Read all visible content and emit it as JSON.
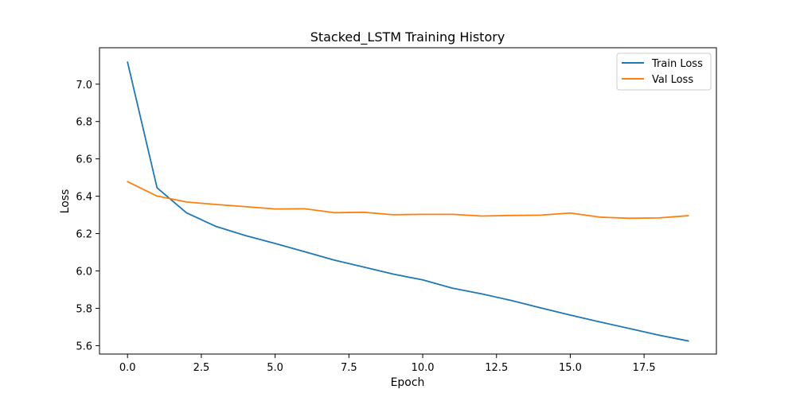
{
  "chart_data": {
    "type": "line",
    "title": "Stacked_LSTM Training History",
    "xlabel": "Epoch",
    "ylabel": "Loss",
    "xlim": [
      -0.95,
      19.95
    ],
    "ylim": [
      5.555,
      7.195
    ],
    "x_ticks": [
      0.0,
      2.5,
      5.0,
      7.5,
      10.0,
      12.5,
      15.0,
      17.5
    ],
    "x_tick_labels": [
      "0.0",
      "2.5",
      "5.0",
      "7.5",
      "10.0",
      "12.5",
      "15.0",
      "17.5"
    ],
    "y_ticks": [
      5.6,
      5.8,
      6.0,
      6.2,
      6.4,
      6.6,
      6.8,
      7.0
    ],
    "y_tick_labels": [
      "5.6",
      "5.8",
      "6.0",
      "6.2",
      "6.4",
      "6.6",
      "6.8",
      "7.0"
    ],
    "grid": false,
    "legend_position": "top-right",
    "x": [
      0,
      1,
      2,
      3,
      4,
      5,
      6,
      7,
      8,
      9,
      10,
      11,
      12,
      13,
      14,
      15,
      16,
      17,
      18,
      19
    ],
    "series": [
      {
        "name": "Train Loss",
        "color": "#1f77b4",
        "values": [
          7.118,
          6.445,
          6.311,
          6.238,
          6.189,
          6.147,
          6.103,
          6.058,
          6.021,
          5.983,
          5.952,
          5.908,
          5.877,
          5.842,
          5.802,
          5.764,
          5.727,
          5.692,
          5.656,
          5.625
        ]
      },
      {
        "name": "Val Loss",
        "color": "#ff7f0e",
        "values": [
          6.478,
          6.401,
          6.369,
          6.356,
          6.344,
          6.332,
          6.333,
          6.312,
          6.314,
          6.301,
          6.303,
          6.303,
          6.294,
          6.297,
          6.299,
          6.31,
          6.288,
          6.282,
          6.284,
          6.296
        ]
      }
    ]
  }
}
